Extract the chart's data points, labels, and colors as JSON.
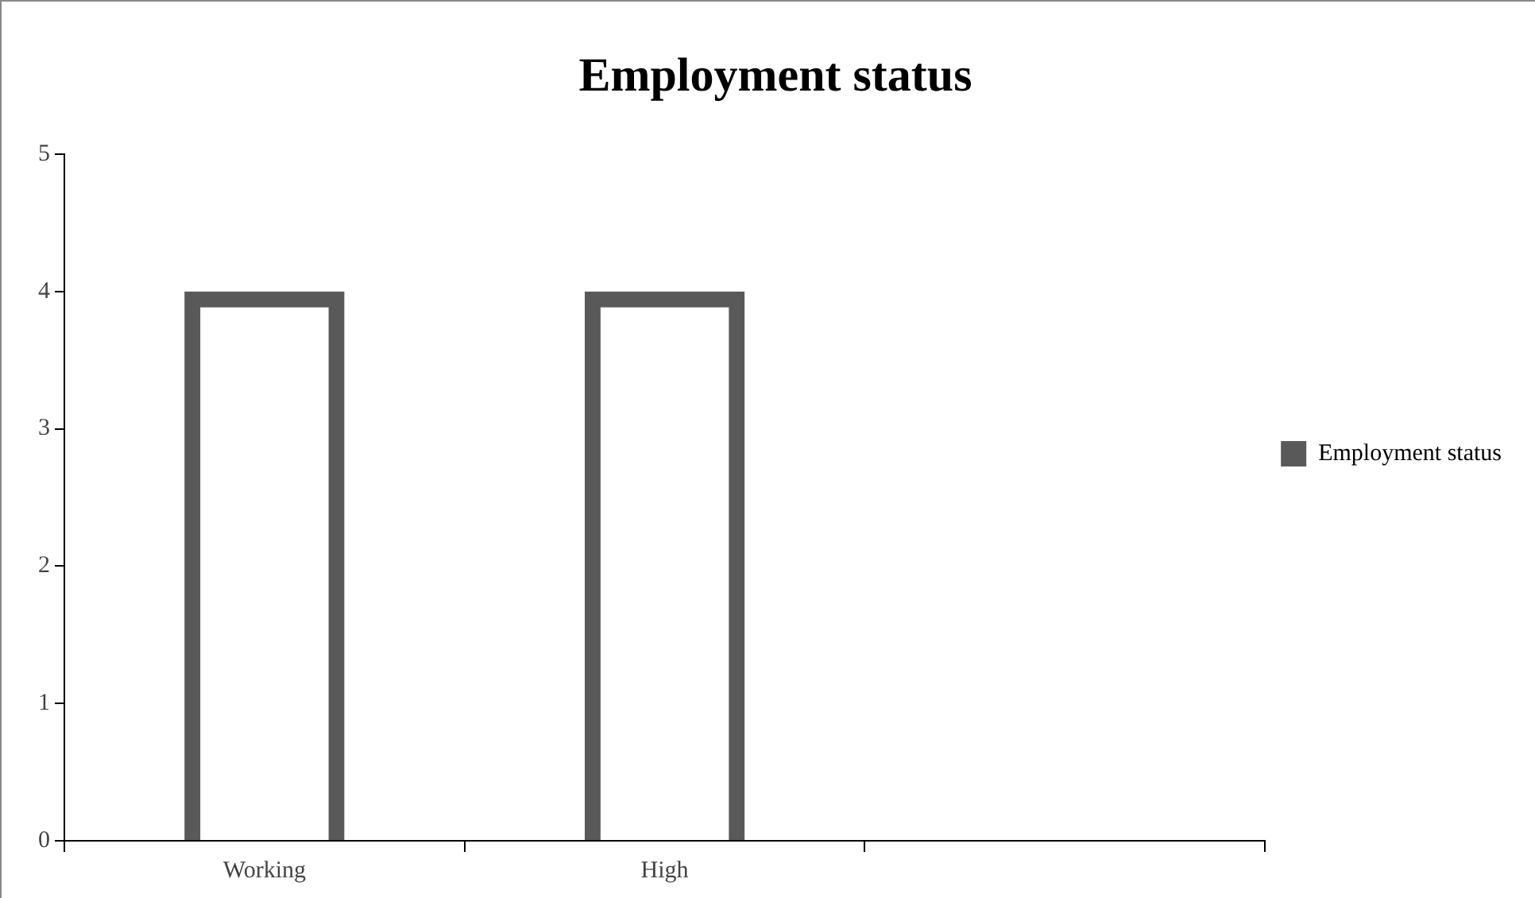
{
  "chart_data": {
    "type": "bar",
    "title": "Employment status",
    "categories": [
      "Working",
      "High",
      null
    ],
    "series": [
      {
        "name": "Employment status",
        "color": "#595959",
        "values": [
          4,
          4,
          null
        ]
      }
    ],
    "ylim": [
      0,
      5
    ],
    "yticks": [
      0,
      1,
      2,
      3,
      4,
      5
    ],
    "grid": false,
    "legend": "right"
  }
}
